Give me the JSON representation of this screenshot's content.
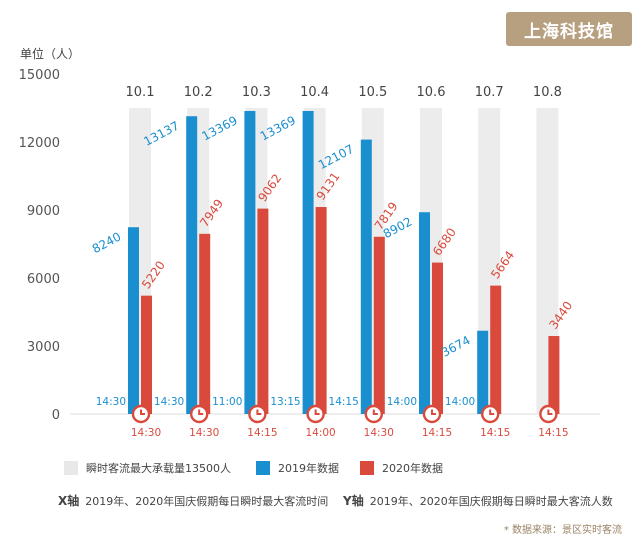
{
  "badge": "上海科技馆",
  "colors": {
    "series_2019": "#1a8fd0",
    "series_2020": "#d94a3d",
    "capacity_bar": "#ececec",
    "badge_bg": "#b7a07f",
    "label_2019": "#1a8fd0",
    "label_2020": "#d94a3d"
  },
  "chart_data": {
    "type": "bar",
    "ylabel": "单位（人）",
    "ylim": [
      0,
      15000
    ],
    "yticks": [
      "15000",
      "12000",
      "9000",
      "6000",
      "3000",
      "0"
    ],
    "categories": [
      "10.1",
      "10.2",
      "10.3",
      "10.4",
      "10.5",
      "10.6",
      "10.7",
      "10.8"
    ],
    "capacity": 13500,
    "series": [
      {
        "name": "2019年数据",
        "values": [
          8240,
          13137,
          13369,
          13369,
          12107,
          8902,
          3674,
          null
        ],
        "labels": [
          "8240",
          "13137",
          "13369",
          "13369",
          "12107",
          "8902",
          "3674",
          ""
        ],
        "times": [
          "14:30",
          "14:30",
          "11:00",
          "13:15",
          "14:15",
          "14:00",
          "14:00",
          ""
        ]
      },
      {
        "name": "2020年数据",
        "values": [
          5220,
          7949,
          9062,
          9131,
          7819,
          6680,
          5664,
          3440
        ],
        "labels": [
          "5220",
          "7949",
          "9062",
          "9131",
          "7819",
          "6680",
          "5664",
          "3440"
        ],
        "times": [
          "14:30",
          "14:30",
          "14:15",
          "14:00",
          "14:30",
          "14:15",
          "14:15",
          "14:15"
        ]
      }
    ],
    "grid": false
  },
  "legend": {
    "capacity": "瞬时客流最大承载量13500人",
    "s2019": "2019年数据",
    "s2020": "2020年数据"
  },
  "axis_notes": {
    "x_key": "X轴",
    "x_text": "2019年、2020年国庆假期每日瞬时最大客流时间",
    "y_key": "Y轴",
    "y_text": "2019年、2020年国庆假期每日瞬时最大客流人数"
  },
  "source": "* 数据来源：景区实时客流"
}
